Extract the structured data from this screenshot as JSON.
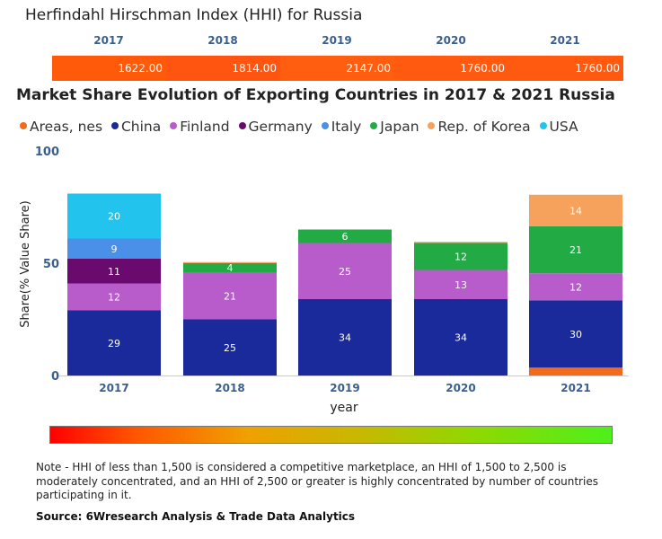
{
  "hhi": {
    "title": "Herfindahl Hirschman Index (HHI) for Russia",
    "years": [
      "2017",
      "2018",
      "2019",
      "2020",
      "2021"
    ],
    "values": [
      "1622.00",
      "1814.00",
      "2147.00",
      "1760.00",
      "1760.00"
    ],
    "colors": [
      "#ff5a0a",
      "#ff5510",
      "#ff5d10",
      "#ff5a10",
      "#ff5a10"
    ]
  },
  "chart_data": {
    "type": "bar",
    "stacked": true,
    "title": "Market Share Evolution of Exporting Countries in 2017 & 2021 Russia",
    "xlabel": "year",
    "ylabel": "Share(% Value Share)",
    "ylim": [
      0,
      100
    ],
    "yticks": [
      "0",
      "50",
      "100"
    ],
    "categories": [
      "2017",
      "2018",
      "2019",
      "2020",
      "2021"
    ],
    "series": [
      {
        "name": "Areas, nes",
        "color": "#f26b1d",
        "values": [
          0,
          0,
          0,
          0,
          3.5
        ],
        "labels": [
          "",
          "",
          "",
          "",
          ""
        ]
      },
      {
        "name": "China",
        "color": "#1a2a9a",
        "values": [
          29,
          25,
          34,
          34,
          30
        ],
        "labels": [
          "29",
          "25",
          "34",
          "34",
          "30"
        ]
      },
      {
        "name": "Finland",
        "color": "#b85ccc",
        "values": [
          12,
          21,
          25,
          13,
          12
        ],
        "labels": [
          "12",
          "21",
          "25",
          "13",
          "12"
        ]
      },
      {
        "name": "Germany",
        "color": "#6a0a6e",
        "values": [
          11,
          0,
          0,
          0,
          0
        ],
        "labels": [
          "11",
          "",
          "",
          "",
          ""
        ]
      },
      {
        "name": "Italy",
        "color": "#4a90e8",
        "values": [
          9,
          0,
          0,
          0,
          0
        ],
        "labels": [
          "9",
          "",
          "",
          "",
          ""
        ]
      },
      {
        "name": "Japan",
        "color": "#22aa44",
        "values": [
          0,
          4,
          6,
          12,
          21
        ],
        "labels": [
          "",
          "4",
          "6",
          "12",
          "21"
        ]
      },
      {
        "name": "Rep. of Korea",
        "color": "#f7a25c",
        "values": [
          0,
          0.5,
          0,
          0.5,
          14
        ],
        "labels": [
          "",
          "",
          "",
          "",
          "14"
        ]
      },
      {
        "name": "USA",
        "color": "#22c4ee",
        "values": [
          20,
          0,
          0,
          0,
          0
        ],
        "labels": [
          "20",
          "",
          "",
          "",
          ""
        ]
      }
    ]
  },
  "footer": {
    "note": "Note - HHI of less than 1,500 is considered a competitive marketplace, an HHI of 1,500 to 2,500 is moderately concentrated, and an HHI of 2,500 or greater is highly concentrated by number of countries participating in it.",
    "source": "Source: 6Wresearch Analysis & Trade Data Analytics"
  }
}
